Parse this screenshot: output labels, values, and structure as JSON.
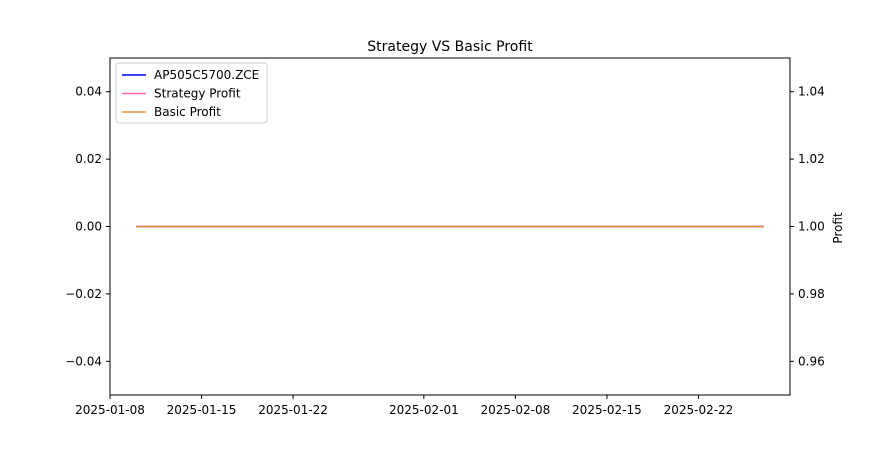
{
  "chart_data": {
    "type": "line",
    "title": "Strategy VS Basic Profit",
    "xlabel": "",
    "ylabel_left": "",
    "ylabel_right": "Profit",
    "xlim": [
      "2025-01-08",
      "2025-03-01"
    ],
    "ylim_left": [
      -0.05,
      0.05
    ],
    "ylim_right": [
      0.95,
      1.05
    ],
    "xticks": [
      "2025-01-08",
      "2025-01-15",
      "2025-01-22",
      "2025-02-01",
      "2025-02-08",
      "2025-02-15",
      "2025-02-22"
    ],
    "yticks_left": [
      "0.04",
      "0.02",
      "0.00",
      "−0.02",
      "−0.04"
    ],
    "yticks_left_values": [
      0.04,
      0.02,
      0.0,
      -0.02,
      -0.04
    ],
    "yticks_right": [
      "1.04",
      "1.02",
      "1.00",
      "0.98",
      "0.96"
    ],
    "yticks_right_values": [
      1.04,
      1.02,
      1.0,
      0.98,
      0.96
    ],
    "legend_position": "top-left",
    "grid": false,
    "series": [
      {
        "name": "AP505C5700.ZCE",
        "axis": "left",
        "color": "#0000ff",
        "x": [
          "2025-01-10",
          "2025-02-27"
        ],
        "values": [
          0.0,
          0.0
        ]
      },
      {
        "name": "Strategy Profit",
        "axis": "right",
        "color": "#ff69b4",
        "x": [
          "2025-01-10",
          "2025-02-27"
        ],
        "values": [
          1.0,
          1.0
        ]
      },
      {
        "name": "Basic Profit",
        "axis": "right",
        "color": "#e0913c",
        "x": [
          "2025-01-10",
          "2025-02-27"
        ],
        "values": [
          1.0,
          1.0
        ]
      }
    ]
  }
}
